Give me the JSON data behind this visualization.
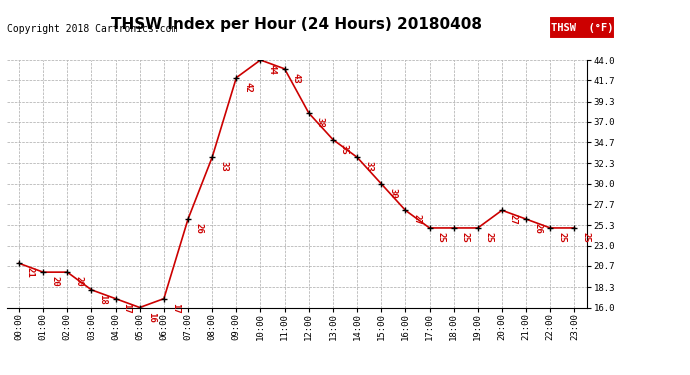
{
  "title": "THSW Index per Hour (24 Hours) 20180408",
  "copyright": "Copyright 2018 Cartronics.com",
  "legend_label": "THSW  (°F)",
  "hours": [
    0,
    1,
    2,
    3,
    4,
    5,
    6,
    7,
    8,
    9,
    10,
    11,
    12,
    13,
    14,
    15,
    16,
    17,
    18,
    19,
    20,
    21,
    22,
    23
  ],
  "values": [
    21,
    20,
    20,
    18,
    17,
    16,
    17,
    26,
    33,
    42,
    44,
    43,
    38,
    35,
    33,
    30,
    27,
    25,
    25,
    25,
    27,
    26,
    25,
    25
  ],
  "ylim": [
    16.0,
    44.0
  ],
  "yticks": [
    16.0,
    18.3,
    20.7,
    23.0,
    25.3,
    27.7,
    30.0,
    32.3,
    34.7,
    37.0,
    39.3,
    41.7,
    44.0
  ],
  "line_color": "#cc0000",
  "bg_color": "#ffffff",
  "grid_color": "#aaaaaa",
  "title_fontsize": 11,
  "annotation_fontsize": 6.5,
  "copyright_fontsize": 7,
  "tick_fontsize": 6.5,
  "legend_fontsize": 7.5
}
